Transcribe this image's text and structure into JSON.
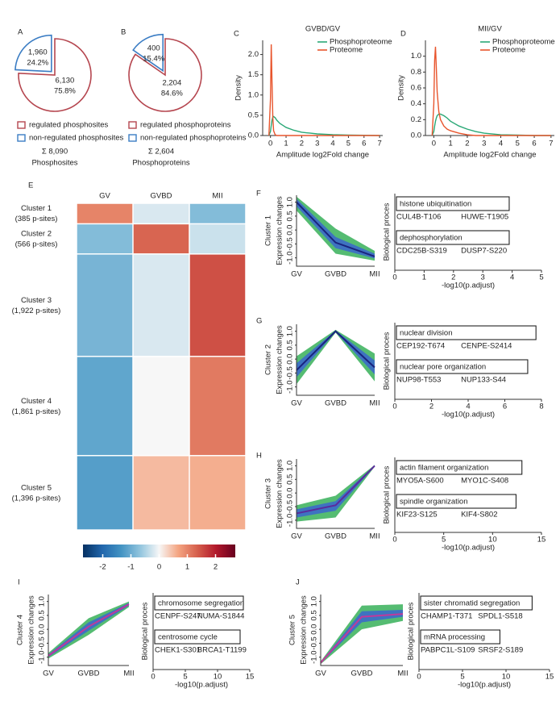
{
  "chart_data": [
    {
      "type": "pie",
      "panel": "A",
      "categories": [
        "regulated phosphosites",
        "non-regulated phosphosites"
      ],
      "values": [
        6130,
        1960
      ],
      "value_labels": [
        "6,130",
        "1,960"
      ],
      "percent_labels": [
        "75.8%",
        "24.2%"
      ],
      "colors": [
        "#b5464f",
        "#3b7dc4"
      ],
      "total_label": "Σ 8,090",
      "total_caption": "Phosphosites"
    },
    {
      "type": "pie",
      "panel": "B",
      "categories": [
        "regulated phosphoproteins",
        "non-regulated phosphoproteins"
      ],
      "values": [
        2204,
        400
      ],
      "value_labels": [
        "2,204",
        "400"
      ],
      "percent_labels": [
        "84.6%",
        "15.4%"
      ],
      "colors": [
        "#b5464f",
        "#3b7dc4"
      ],
      "total_label": "Σ 2,604",
      "total_caption": "Phosphoproteins"
    },
    {
      "type": "density",
      "panel": "C",
      "title": "GVBD/GV",
      "xlabel": "Amplitude log2Fold change",
      "ylabel": "Density",
      "xlim": [
        -0.5,
        7.2
      ],
      "xticks": [
        0,
        1,
        2,
        3,
        4,
        5,
        6,
        7
      ],
      "ylim": [
        0,
        2.35
      ],
      "yticks": [
        {
          "value": 0,
          "label": "0.0"
        },
        0.5,
        {
          "value": 1,
          "label": "1.0"
        },
        1.5,
        {
          "value": 2,
          "label": "2.0"
        }
      ],
      "x": [
        -0.1,
        0,
        0.05,
        0.1,
        0.15,
        0.2,
        0.3,
        0.4,
        0.6,
        0.8,
        1,
        1.5,
        2,
        2.5,
        3,
        4,
        5,
        6,
        7
      ],
      "series": [
        {
          "name": "Phosphoproteome",
          "color": "#2aa876",
          "values": [
            0,
            0.1,
            0.25,
            0.38,
            0.45,
            0.47,
            0.44,
            0.38,
            0.3,
            0.25,
            0.2,
            0.13,
            0.08,
            0.06,
            0.04,
            0.02,
            0.01,
            0.005,
            0
          ]
        },
        {
          "name": "Proteome",
          "color": "#e8552d",
          "values": [
            0,
            0.9,
            2.25,
            1.3,
            0.45,
            0.12,
            0.02,
            0,
            0,
            0,
            0,
            0,
            0,
            0,
            0,
            0,
            0,
            0,
            0
          ]
        }
      ]
    },
    {
      "type": "density",
      "panel": "D",
      "title": "MII/GV",
      "xlabel": "Amplitude log2Fold change",
      "ylabel": "Density",
      "xlim": [
        -0.5,
        7.2
      ],
      "xticks": [
        0,
        1,
        2,
        3,
        4,
        5,
        6,
        7
      ],
      "ylim": [
        0,
        1.2
      ],
      "yticks": [
        {
          "value": 0,
          "label": "0.0"
        },
        0.2,
        0.4,
        0.6,
        0.8,
        {
          "value": 1,
          "label": "1.0"
        }
      ],
      "x": [
        -0.1,
        0,
        0.05,
        0.1,
        0.15,
        0.2,
        0.3,
        0.4,
        0.6,
        0.8,
        1,
        1.5,
        2,
        2.5,
        3,
        4,
        5,
        6,
        7
      ],
      "series": [
        {
          "name": "Phosphoproteome",
          "color": "#2aa876",
          "values": [
            0,
            0.05,
            0.12,
            0.18,
            0.22,
            0.25,
            0.27,
            0.27,
            0.25,
            0.22,
            0.18,
            0.12,
            0.08,
            0.05,
            0.03,
            0.01,
            0.005,
            0,
            0
          ]
        },
        {
          "name": "Proteome",
          "color": "#e8552d",
          "values": [
            0,
            0.4,
            0.95,
            1.12,
            0.85,
            0.55,
            0.3,
            0.2,
            0.12,
            0.08,
            0.06,
            0.03,
            0.01,
            0,
            0,
            0,
            0,
            0,
            0
          ]
        }
      ]
    },
    {
      "type": "heatmap",
      "panel": "E",
      "columns": [
        "GV",
        "GVBD",
        "MII"
      ],
      "rows": [
        "Cluster 1",
        "Cluster 2",
        "Cluster 3",
        "Cluster 4",
        "Cluster 5"
      ],
      "row_sizes": [
        385,
        566,
        1922,
        1861,
        1396
      ],
      "row_size_labels": [
        "(385 p-sites)",
        "(566 p-sites)",
        "(1,922 p-sites)",
        "(1,861 p-sites)",
        "(1,396 p-sites)"
      ],
      "values": [
        [
          1.0,
          -0.2,
          -0.8
        ],
        [
          -0.8,
          1.3,
          -0.3
        ],
        [
          -0.9,
          -0.2,
          1.5
        ],
        [
          -1.1,
          0.0,
          1.1
        ],
        [
          -1.2,
          0.5,
          0.6
        ]
      ],
      "zlim": [
        -2.7,
        2.7
      ],
      "zticks": [
        -2,
        -1,
        0,
        1,
        2
      ],
      "colormap": [
        "#053061",
        "#2166ac",
        "#4393c3",
        "#92c5de",
        "#f7f7f7",
        "#f4a582",
        "#d6604d",
        "#b2182b",
        "#67001f"
      ]
    },
    {
      "type": "band",
      "panel": "F",
      "label": "Cluster 1",
      "ylabel": "Expression changes",
      "categories": [
        "GV",
        "GVBD",
        "MII"
      ],
      "ylim": [
        -1.3,
        1.25
      ],
      "yticks": [
        {
          "value": -1,
          "label": "-1.0"
        },
        -0.5,
        {
          "value": 0,
          "label": "0.0"
        },
        0.5,
        {
          "value": 1,
          "label": "1.0"
        }
      ],
      "values": [
        1.0,
        -0.45,
        -0.95
      ],
      "line_color": "#1a237e",
      "bands": [
        {
          "color": "#4cb86a",
          "lower": [
            0.7,
            -0.85,
            -1.1
          ],
          "upper": [
            1.2,
            0.05,
            -0.75
          ]
        },
        {
          "color": "#3d6fc4",
          "lower": [
            0.85,
            -0.65,
            -1.02
          ],
          "upper": [
            1.12,
            -0.25,
            -0.85
          ]
        }
      ]
    },
    {
      "type": "go",
      "ylabel": "Biological proces",
      "xlabel": "-log10(p.adjust)",
      "xlim": [
        0,
        5
      ],
      "xticks": [
        0,
        1,
        2,
        3,
        4,
        5
      ],
      "categories": [
        "histone ubiquitination",
        "dephosphorylation"
      ],
      "values": [
        3.9,
        3.9
      ],
      "genes": [
        [
          "CUL4B-T106",
          "HUWE-T1905"
        ],
        [
          "CDC25B-S319",
          "DUSP7-S220"
        ]
      ]
    },
    {
      "type": "band",
      "panel": "G",
      "label": "Cluster 2",
      "ylabel": "Expression changes",
      "categories": [
        "GV",
        "GVBD",
        "MII"
      ],
      "ylim": [
        -1.3,
        1.25
      ],
      "yticks": [
        {
          "value": -1,
          "label": "-1.0"
        },
        -0.5,
        {
          "value": 0,
          "label": "0.0"
        },
        0.5,
        {
          "value": 1,
          "label": "1.0"
        }
      ],
      "values": [
        -0.4,
        1.0,
        -0.3
      ],
      "line_color": "#1a237e",
      "bands": [
        {
          "color": "#4cb86a",
          "lower": [
            -0.9,
            0.95,
            -0.8
          ],
          "upper": [
            0.1,
            1.05,
            0.2
          ]
        },
        {
          "color": "#3d6fc4",
          "lower": [
            -0.65,
            0.97,
            -0.55
          ],
          "upper": [
            -0.15,
            1.03,
            -0.05
          ]
        }
      ]
    },
    {
      "type": "go",
      "ylabel": "Biological proces",
      "xlabel": "-log10(p.adjust)",
      "xlim": [
        0,
        8
      ],
      "xticks": [
        0,
        2,
        4,
        6,
        8
      ],
      "categories": [
        "nuclear division",
        "nuclear pore organization"
      ],
      "values": [
        7.7,
        7.25
      ],
      "genes": [
        [
          "CEP192-T674",
          "CENPE-S2414"
        ],
        [
          "NUP98-T553",
          "NUP133-S44"
        ]
      ]
    },
    {
      "type": "band",
      "panel": "H",
      "label": "Cluster 3",
      "ylabel": "Expression changes",
      "categories": [
        "GV",
        "GVBD",
        "MII"
      ],
      "ylim": [
        -1.3,
        1.25
      ],
      "yticks": [
        {
          "value": -1,
          "label": "-1.0"
        },
        -0.5,
        {
          "value": 0,
          "label": "0.0"
        },
        0.5,
        {
          "value": 1,
          "label": "1.0"
        }
      ],
      "values": [
        -0.75,
        -0.45,
        1.0
      ],
      "line_color": "#5b2a9c",
      "bands": [
        {
          "color": "#4cb86a",
          "lower": [
            -1.05,
            -0.9,
            0.97
          ],
          "upper": [
            -0.45,
            -0.1,
            1.03
          ]
        },
        {
          "color": "#3d6fc4",
          "lower": [
            -0.9,
            -0.65,
            0.98
          ],
          "upper": [
            -0.6,
            -0.3,
            1.02
          ]
        }
      ]
    },
    {
      "type": "go",
      "ylabel": "Biological proces",
      "xlabel": "-log10(p.adjust)",
      "xlim": [
        0,
        15
      ],
      "xticks": [
        0,
        5,
        10,
        15
      ],
      "categories": [
        "actin filament organization",
        "spindle organization"
      ],
      "values": [
        13.0,
        12.4
      ],
      "genes": [
        [
          "MYO5A-S600",
          "MYO1C-S408"
        ],
        [
          "KIF23-S125",
          "KIF4-S802"
        ]
      ]
    },
    {
      "type": "band",
      "panel": "I",
      "label": "Cluster 4",
      "ylabel": "Expression changes",
      "categories": [
        "GV",
        "GVBD",
        "MII"
      ],
      "ylim": [
        -1.3,
        1.25
      ],
      "yticks": [
        {
          "value": -1,
          "label": "-1.0"
        },
        -0.5,
        {
          "value": 0,
          "label": "0.0"
        },
        0.5,
        {
          "value": 1,
          "label": "1.0"
        }
      ],
      "values": [
        -0.95,
        0.1,
        0.9
      ],
      "line_color": "#c0399b",
      "bands": [
        {
          "color": "#4cb86a",
          "lower": [
            -1.05,
            -0.2,
            0.8
          ],
          "upper": [
            -0.85,
            0.4,
            1.0
          ]
        },
        {
          "color": "#3d6fc4",
          "lower": [
            -1.0,
            -0.05,
            0.85
          ],
          "upper": [
            -0.9,
            0.25,
            0.95
          ]
        }
      ]
    },
    {
      "type": "go",
      "ylabel": "Biological proces",
      "xlabel": "-log10(p.adjust)",
      "xlim": [
        0,
        15
      ],
      "xticks": [
        0,
        5,
        10,
        15
      ],
      "categories": [
        "chromosome segregation",
        "centrosome cycle"
      ],
      "values": [
        14.0,
        13.5
      ],
      "genes": [
        [
          "CENPF-S247",
          "NUMA-S1844"
        ],
        [
          "CHEK1-S301",
          "BRCA1-T1199"
        ]
      ]
    },
    {
      "type": "band",
      "panel": "J",
      "label": "Cluster 5",
      "ylabel": "Expression changes",
      "categories": [
        "GV",
        "GVBD",
        "MII"
      ],
      "ylim": [
        -1.3,
        1.25
      ],
      "yticks": [
        {
          "value": -1,
          "label": "-1.0"
        },
        -0.5,
        {
          "value": 0,
          "label": "0.0"
        },
        0.5,
        {
          "value": 1,
          "label": "1.0"
        }
      ],
      "values": [
        -1.2,
        0.45,
        0.55
      ],
      "line_color": "#c0399b",
      "bands": [
        {
          "color": "#4cb86a",
          "lower": [
            -1.25,
            0.0,
            0.3
          ],
          "upper": [
            -1.15,
            0.85,
            0.9
          ]
        },
        {
          "color": "#3d6fc4",
          "lower": [
            -1.22,
            0.25,
            0.45
          ],
          "upper": [
            -1.18,
            0.65,
            0.7
          ]
        }
      ]
    },
    {
      "type": "go",
      "ylabel": "Biological proces",
      "xlabel": "-log10(p.adjust)",
      "xlim": [
        0,
        15
      ],
      "xticks": [
        0,
        5,
        10,
        15
      ],
      "categories": [
        "sister chromatid segregation",
        "mRNA processing"
      ],
      "values": [
        13.0,
        9.3
      ],
      "genes": [
        [
          "CHAMP1-T371",
          "SPDL1-S518"
        ],
        [
          "PABPC1L-S109",
          "SRSF2-S189"
        ]
      ]
    }
  ]
}
